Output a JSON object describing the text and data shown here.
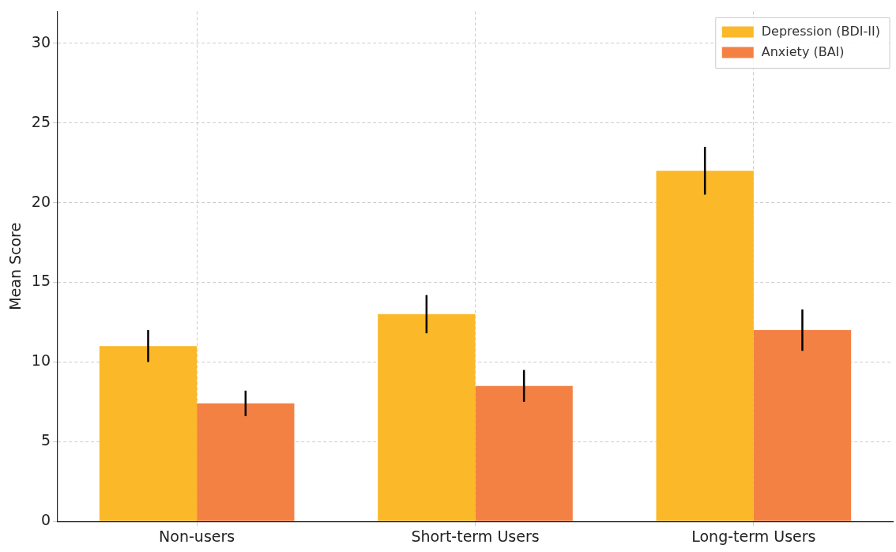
{
  "chart_data": {
    "type": "bar",
    "ylabel": "Mean Score",
    "categories": [
      "Non-users",
      "Short-term Users",
      "Long-term Users"
    ],
    "series": [
      {
        "name": "Depression (BDI-II)",
        "color": "#fbb829",
        "values": [
          11,
          13,
          22
        ],
        "errors": [
          1.0,
          1.2,
          1.5
        ]
      },
      {
        "name": "Anxiety (BAI)",
        "color": "#f48144",
        "values": [
          7.4,
          8.5,
          12
        ],
        "errors": [
          0.8,
          1.0,
          1.3
        ]
      }
    ],
    "ylim": [
      0,
      32
    ],
    "yticks": [
      0,
      5,
      10,
      15,
      20,
      25,
      30
    ],
    "grid": true,
    "legend": "top right"
  }
}
